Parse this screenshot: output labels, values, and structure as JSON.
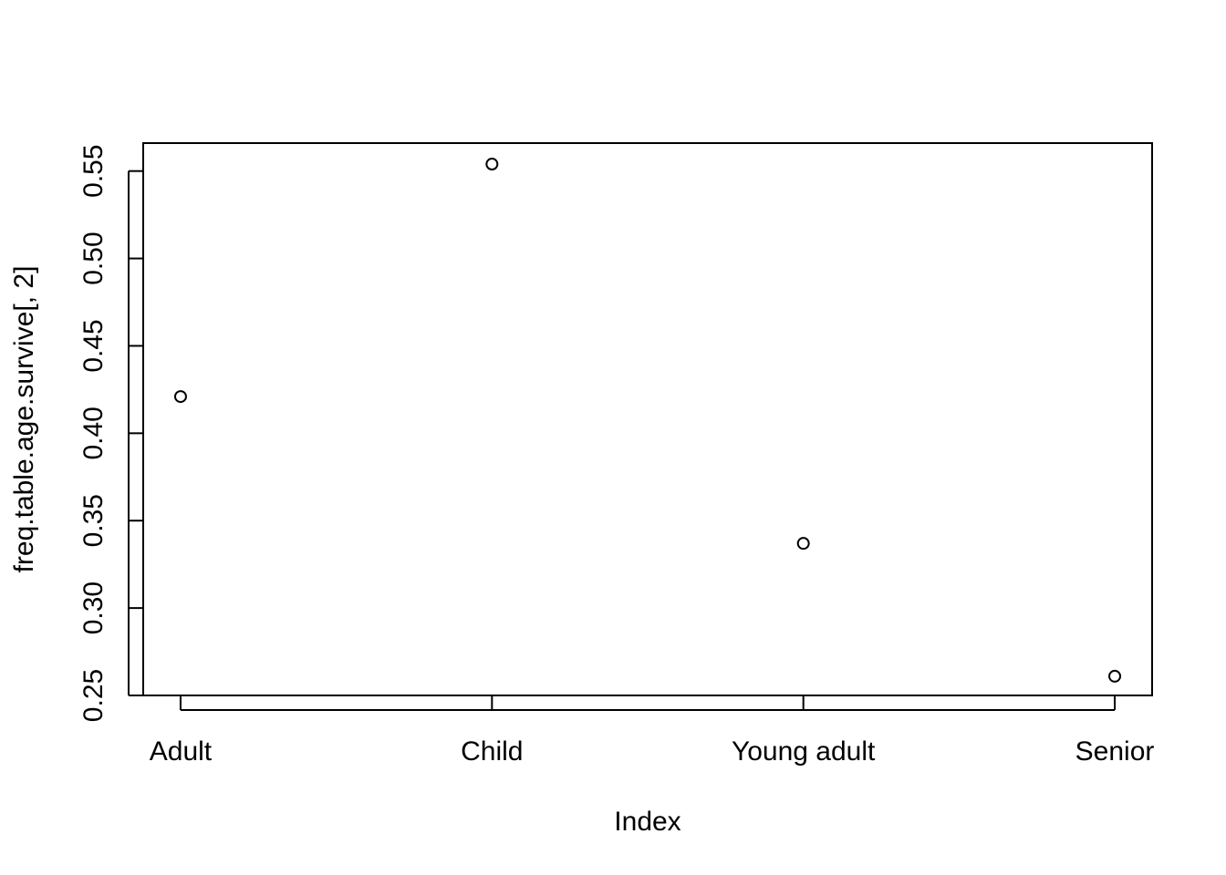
{
  "chart_data": {
    "type": "scatter",
    "title": "",
    "xlabel": "Index",
    "ylabel": "freq.table.age.survive[, 2]",
    "categories": [
      "Adult",
      "Child",
      "Young adult",
      "Senior"
    ],
    "values": [
      0.421,
      0.554,
      0.337,
      0.261
    ],
    "xlim": [
      0.88,
      4.12
    ],
    "ylim": [
      0.25,
      0.566
    ],
    "yticks": [
      0.25,
      0.3,
      0.35,
      0.4,
      0.45,
      0.5,
      0.55
    ],
    "ytick_labels": [
      "0.25",
      "0.30",
      "0.35",
      "0.40",
      "0.45",
      "0.50",
      "0.55"
    ],
    "grid": false,
    "marker": "open-circle",
    "colors": {
      "points": "#000000",
      "axes": "#000000",
      "background": "#ffffff"
    }
  }
}
